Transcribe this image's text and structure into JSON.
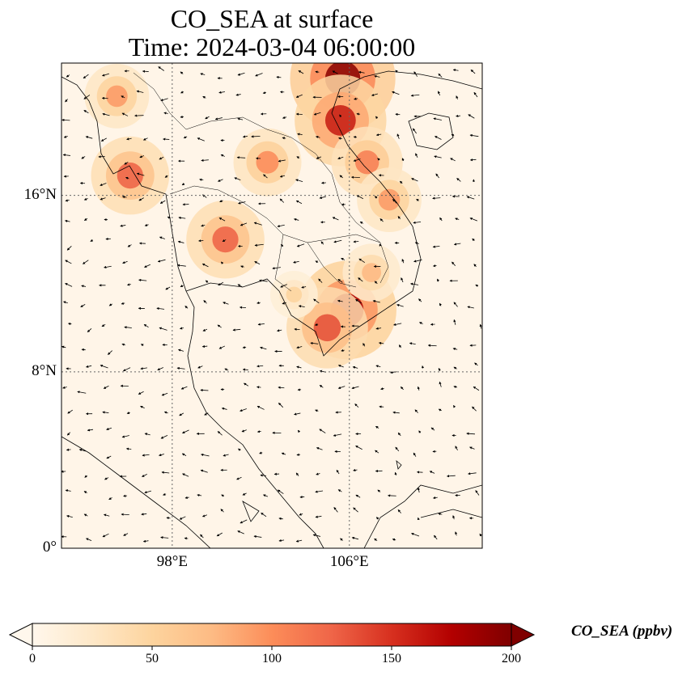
{
  "title": {
    "line1": "CO_SEA at surface",
    "line2": "Time: 2024-03-04 06:00:00"
  },
  "axes": {
    "lat_ticks": [
      {
        "value": 16,
        "label": "16°N"
      },
      {
        "value": 8,
        "label": "8°N"
      },
      {
        "value": 0,
        "label": "0°"
      }
    ],
    "lon_ticks": [
      {
        "value": 98,
        "label": "98°E"
      },
      {
        "value": 106,
        "label": "106°E"
      }
    ],
    "lon_range": [
      93,
      112
    ],
    "lat_range": [
      0,
      22
    ]
  },
  "colorbar": {
    "label": "CO_SEA (ppbv)",
    "min": 0,
    "max": 200,
    "extend": "both",
    "colormap": "OrRd",
    "colors": [
      "#fff7ec",
      "#fee8c8",
      "#fdd49e",
      "#fdbb84",
      "#fc8d59",
      "#ef6548",
      "#d7301f",
      "#b30000",
      "#7f0000"
    ],
    "ticks": [
      {
        "value": 0,
        "label": "0"
      },
      {
        "value": 50,
        "label": "50"
      },
      {
        "value": 100,
        "label": "100"
      },
      {
        "value": 150,
        "label": "150"
      },
      {
        "value": 200,
        "label": "200"
      }
    ]
  },
  "map": {
    "background_color": "#fff5e8",
    "overlay": "wind-vectors",
    "plumes": [
      {
        "lon": 105.7,
        "lat": 21.3,
        "value": 230
      },
      {
        "lon": 105.6,
        "lat": 19.4,
        "value": 190
      },
      {
        "lon": 106.8,
        "lat": 17.5,
        "value": 130
      },
      {
        "lon": 107.8,
        "lat": 15.8,
        "value": 110
      },
      {
        "lon": 105.9,
        "lat": 10.8,
        "value": 210
      },
      {
        "lon": 105.0,
        "lat": 10.0,
        "value": 160
      },
      {
        "lon": 96.1,
        "lat": 16.9,
        "value": 150
      },
      {
        "lon": 95.5,
        "lat": 20.5,
        "value": 110
      },
      {
        "lon": 100.4,
        "lat": 14.0,
        "value": 150
      },
      {
        "lon": 102.3,
        "lat": 17.5,
        "value": 120
      },
      {
        "lon": 107.0,
        "lat": 12.5,
        "value": 90
      },
      {
        "lon": 103.5,
        "lat": 11.5,
        "value": 60
      }
    ]
  }
}
